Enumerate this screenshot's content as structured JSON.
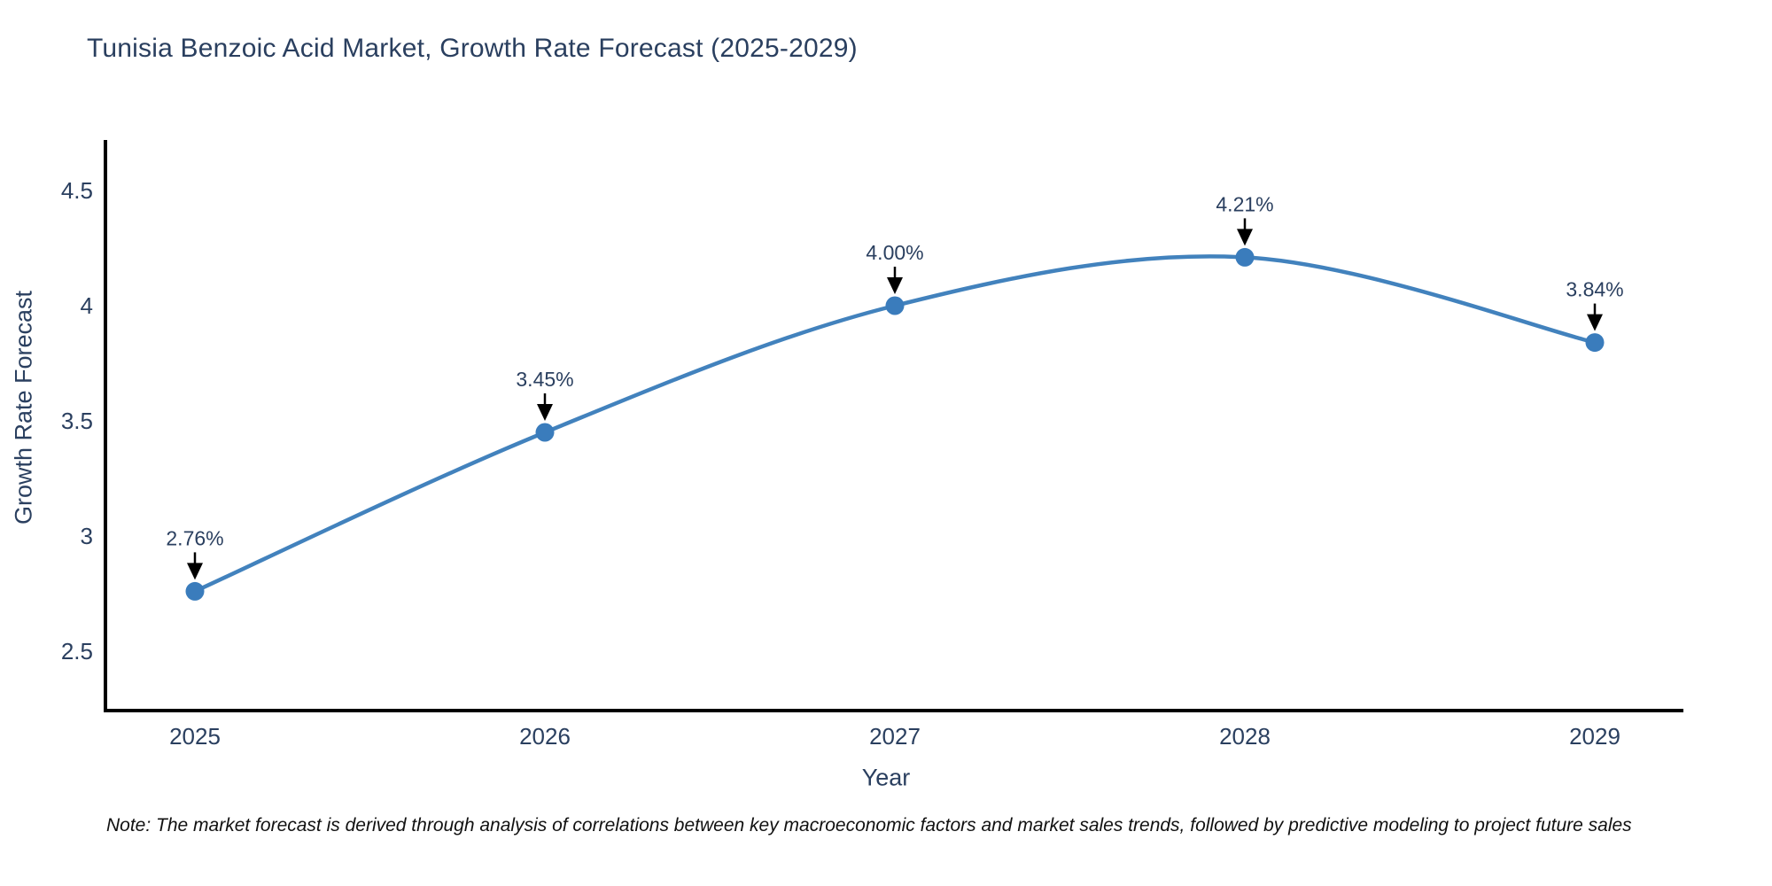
{
  "chart_data": {
    "type": "line",
    "title": "Tunisia Benzoic Acid Market, Growth Rate Forecast (2025-2029)",
    "xlabel": "Year",
    "ylabel": "Growth Rate Forecast",
    "x": [
      2025,
      2026,
      2027,
      2028,
      2029
    ],
    "categories": [
      "2025",
      "2026",
      "2027",
      "2028",
      "2029"
    ],
    "values": [
      2.76,
      3.45,
      4.0,
      4.21,
      3.84
    ],
    "point_labels": [
      "2.76%",
      "3.45%",
      "4.00%",
      "4.21%",
      "3.84%"
    ],
    "yticks": [
      2.5,
      3,
      3.5,
      4,
      4.5
    ],
    "ytick_labels": [
      "2.5",
      "3",
      "3.5",
      "4",
      "4.5"
    ],
    "ylim": [
      2.24,
      4.73
    ],
    "xlim": [
      2024.74,
      2029.25
    ],
    "line_shape": "spline",
    "grid": false,
    "legend": "none",
    "line_color": "#4282bd",
    "marker_color": "#3a7cbc",
    "axis_color": "#000000",
    "text_color": "#2a3f5f",
    "annotation_color": "#2a3f5f",
    "arrow_color": "#000000",
    "note": "Note: The market forecast is derived through analysis of correlations between key macroeconomic factors and market sales trends, followed by predictive modeling to project future sales"
  }
}
